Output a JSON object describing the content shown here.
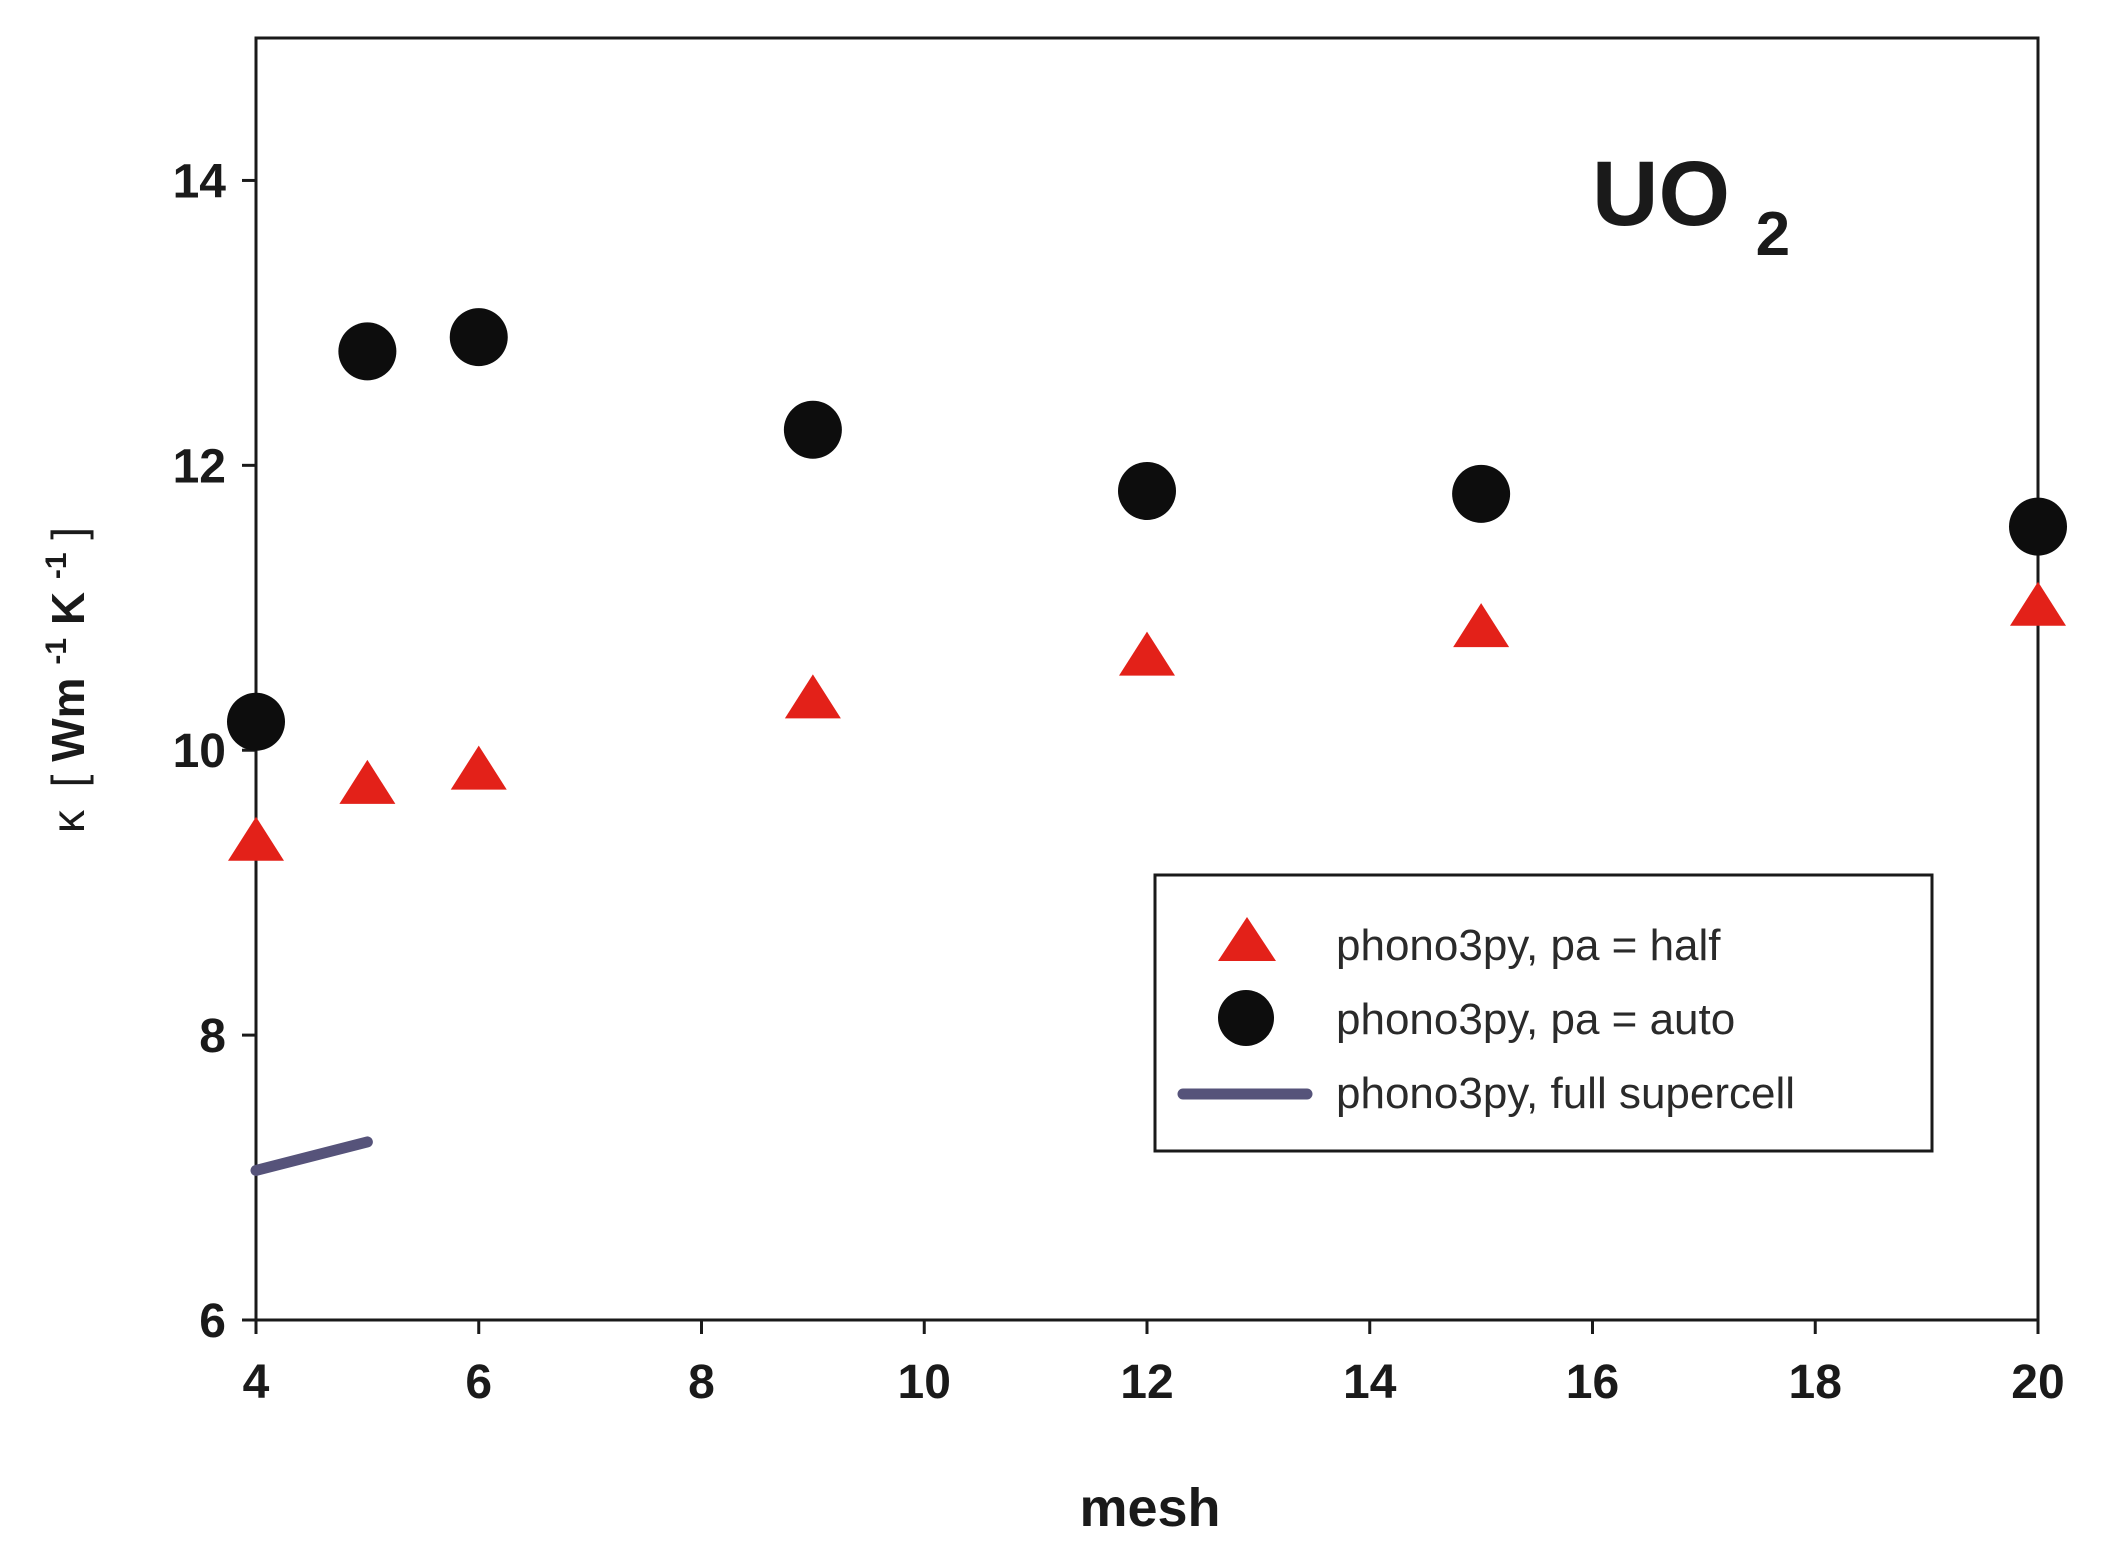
{
  "chart_data": {
    "type": "scatter",
    "title": "",
    "annotation": {
      "main": "UO",
      "sub": "2"
    },
    "xlabel": "mesh",
    "ylabel": {
      "symbol": "κ",
      "bracket_open": "[",
      "w": "Wm",
      "exp1": "-1",
      "k": "K",
      "exp2": "-1",
      "bracket_close": "]"
    },
    "xlim": [
      4,
      20
    ],
    "ylim": [
      6,
      15
    ],
    "x_ticks": [
      4,
      6,
      8,
      10,
      12,
      14,
      16,
      18,
      20
    ],
    "y_ticks": [
      6,
      8,
      10,
      12,
      14
    ],
    "legend_position": "lower-right",
    "series": [
      {
        "name": "phono3py, pa = half",
        "marker": "triangle",
        "color": "#e32119",
        "points": [
          {
            "x": 4,
            "y": 9.35
          },
          {
            "x": 5,
            "y": 9.75
          },
          {
            "x": 6,
            "y": 9.85
          },
          {
            "x": 9,
            "y": 10.35
          },
          {
            "x": 12,
            "y": 10.65
          },
          {
            "x": 15,
            "y": 10.85
          },
          {
            "x": 20,
            "y": 11.0
          }
        ]
      },
      {
        "name": "phono3py, pa = auto",
        "marker": "circle",
        "color": "#0d0d0d",
        "points": [
          {
            "x": 4,
            "y": 10.2
          },
          {
            "x": 5,
            "y": 12.8
          },
          {
            "x": 6,
            "y": 12.9
          },
          {
            "x": 9,
            "y": 12.25
          },
          {
            "x": 12,
            "y": 11.82
          },
          {
            "x": 15,
            "y": 11.8
          },
          {
            "x": 20,
            "y": 11.57
          }
        ]
      },
      {
        "name": "phono3py, full supercell",
        "marker": "line",
        "color": "#56537a",
        "points": [
          {
            "x": 4,
            "y": 7.05
          },
          {
            "x": 5,
            "y": 7.25
          }
        ]
      }
    ]
  }
}
